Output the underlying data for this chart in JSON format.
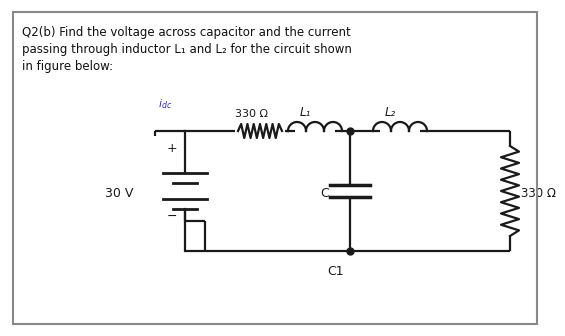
{
  "title_line1": "Q2(b) Find the voltage across capacitor and the current",
  "title_line2": "passing through inductor L₁ and L₂ for the circuit shown",
  "title_line3": "in figure below:",
  "bg_color": "#ffffff",
  "circuit_color": "#1a1a1a",
  "label_330_R": "330 Ω",
  "label_L1": "L₁",
  "label_L2": "L₂",
  "label_30V": "30 V",
  "label_C": "C",
  "label_C1": "C1",
  "label_330_ohm_R": "330 Ω",
  "plus": "+",
  "minus": "−",
  "text_color": "#111111"
}
